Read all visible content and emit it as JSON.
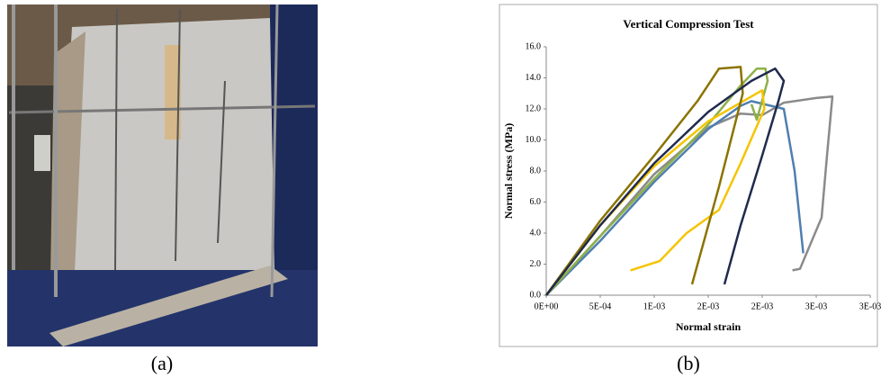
{
  "captions": [
    "(a)",
    "(b)"
  ],
  "chart_data": {
    "type": "line",
    "title": "Vertical Compression Test",
    "x_label": "Normal strain",
    "y_label": "Normal stress (MPa)",
    "xlim": [
      0,
      0.003
    ],
    "ylim": [
      0,
      16
    ],
    "xticks": [
      {
        "value": 0,
        "label": "0E+00"
      },
      {
        "value": 0.0005,
        "label": "5E-04"
      },
      {
        "value": 0.001,
        "label": "1E-03"
      },
      {
        "value": 0.0015,
        "label": "2E-03"
      },
      {
        "value": 0.002,
        "label": "2E-03"
      },
      {
        "value": 0.0025,
        "label": "3E-03"
      },
      {
        "value": 0.003,
        "label": "3E-03"
      }
    ],
    "yticks": [
      {
        "value": 0,
        "label": "0.0"
      },
      {
        "value": 2,
        "label": "2.0"
      },
      {
        "value": 4,
        "label": "4.0"
      },
      {
        "value": 6,
        "label": "6.0"
      },
      {
        "value": 8,
        "label": "8.0"
      },
      {
        "value": 10,
        "label": "10.0"
      },
      {
        "value": 12,
        "label": "12.0"
      },
      {
        "value": 14,
        "label": "14.0"
      },
      {
        "value": 16,
        "label": "16.0"
      }
    ],
    "series": [
      {
        "color": "#8a8a8a",
        "x": [
          0,
          0.0005,
          0.001,
          0.0015,
          0.0018,
          0.002,
          0.0022,
          0.0025,
          0.00265,
          0.0026,
          0.00255,
          0.00235,
          0.00228
        ],
        "values": [
          0,
          3.8,
          7.8,
          10.8,
          11.7,
          11.6,
          12.4,
          12.7,
          12.8,
          9,
          5,
          1.7,
          1.6
        ]
      },
      {
        "color": "#4f7fb0",
        "x": [
          0,
          0.0005,
          0.001,
          0.0015,
          0.0018,
          0.0019,
          0.0022,
          0.0023,
          0.00238
        ],
        "values": [
          0,
          3.5,
          7.3,
          10.7,
          12.2,
          12.5,
          12.0,
          8,
          2.7
        ]
      },
      {
        "color": "#8db04a",
        "x": [
          0,
          0.0005,
          0.001,
          0.0015,
          0.0018,
          0.00195,
          0.00203,
          0.00205,
          0.00195,
          0.0019
        ],
        "values": [
          0,
          3.8,
          7.5,
          11,
          13.5,
          14.6,
          14.6,
          13.8,
          11.3,
          12.3
        ]
      },
      {
        "color": "#f5c400",
        "x": [
          0,
          0.0005,
          0.001,
          0.0015,
          0.0019,
          0.002,
          0.00202,
          0.0018,
          0.0016,
          0.0013,
          0.00105,
          0.00078
        ],
        "values": [
          0,
          4.5,
          8.3,
          11.2,
          12.8,
          13.2,
          12,
          8.5,
          5.5,
          4,
          2.2,
          1.6
        ]
      },
      {
        "color": "#8b7300",
        "x": [
          0,
          0.0005,
          0.001,
          0.0014,
          0.0016,
          0.0018,
          0.00182,
          0.0016,
          0.00135
        ],
        "values": [
          0,
          4.8,
          9,
          12.5,
          14.6,
          14.7,
          13,
          7,
          0.7
        ]
      },
      {
        "color": "#1f2a4d",
        "x": [
          0,
          0.0005,
          0.001,
          0.0015,
          0.0019,
          0.00212,
          0.0022,
          0.00215,
          0.002,
          0.0018,
          0.00165
        ],
        "values": [
          0,
          4.5,
          8.5,
          11.8,
          13.8,
          14.6,
          13.8,
          12.5,
          9,
          4.5,
          0.7
        ]
      }
    ]
  }
}
